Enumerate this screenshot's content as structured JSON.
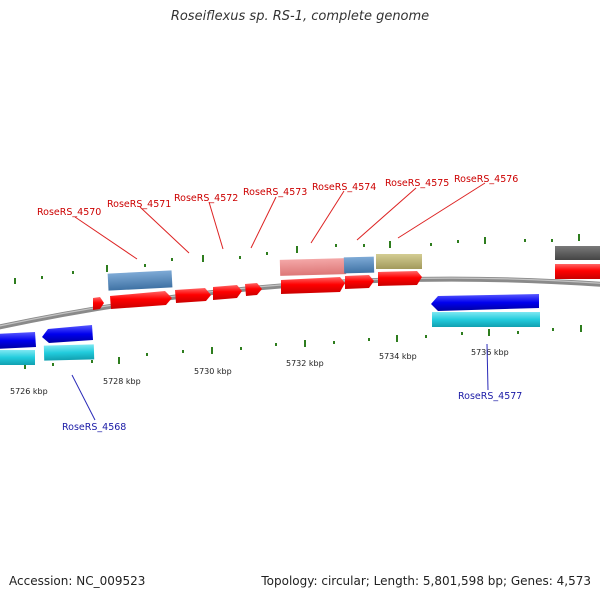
{
  "title": "Roseiflexus sp. RS-1, complete genome",
  "footer": {
    "accession": "Accession: NC_009523",
    "summary": "Topology: circular; Length: 5,801,598 bp; Genes: 4,573"
  },
  "colors": {
    "backbone": "#8a8a8a",
    "cds_red": "#ff0000",
    "gene_red_label": "#cc0000",
    "gene_blue_label": "#1a1aa6",
    "tick": "#2e7d1e",
    "blue_strand": "#0000ee",
    "cyan_strand": "#22ccdd",
    "steelblue": "#4f86b8",
    "pink": "#ee8a8a",
    "olive": "#b8b070",
    "grey": "#555555"
  },
  "labels": {
    "l4570": "RoseRS_4570",
    "l4571": "RoseRS_4571",
    "l4572": "RoseRS_4572",
    "l4573": "RoseRS_4573",
    "l4574": "RoseRS_4574",
    "l4575": "RoseRS_4575",
    "l4576": "RoseRS_4576",
    "l4577": "RoseRS_4577",
    "l4568": "RoseRS_4568"
  },
  "kbp": {
    "k5726": "5726 kbp",
    "k5728": "5728 kbp",
    "k5730": "5730 kbp",
    "k5732": "5732 kbp",
    "k5734": "5734 kbp",
    "k5736": "5736 kbp"
  }
}
